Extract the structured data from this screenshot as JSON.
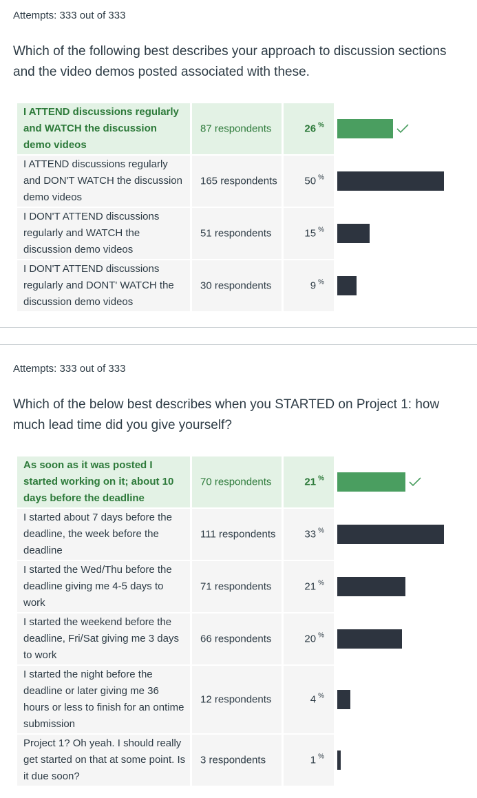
{
  "questions": [
    {
      "attempts": "Attempts: 333 out of 333",
      "text": "Which of the following best describes your approach to discussion sections and the video demos posted associated with these.",
      "answers": [
        {
          "text": "I ATTEND discussions regularly and WATCH the discussion demo videos",
          "respondents": "87 respondents",
          "percent": "26",
          "value": 26,
          "correct": true
        },
        {
          "text": "I ATTEND discussions regularly and DON'T WATCH the discussion demo videos",
          "respondents": "165 respondents",
          "percent": "50",
          "value": 50,
          "correct": false
        },
        {
          "text": "I DON'T ATTEND discussions regularly and WATCH the discussion demo videos",
          "respondents": "51 respondents",
          "percent": "15",
          "value": 15,
          "correct": false
        },
        {
          "text": "I DON'T ATTEND discussions regularly and DONT' WATCH the discussion demo videos",
          "respondents": "30 respondents",
          "percent": "9",
          "value": 9,
          "correct": false
        }
      ]
    },
    {
      "attempts": "Attempts: 333 out of 333",
      "text": "Which of the below best describes when you STARTED on Project 1: how much lead time did you give yourself?",
      "answers": [
        {
          "text": "As soon as it was posted I started working on it; about 10 days before the deadline",
          "respondents": "70 respondents",
          "percent": "21",
          "value": 21,
          "correct": true
        },
        {
          "text": "I started about 7 days before the deadline, the week before the deadline",
          "respondents": "111 respondents",
          "percent": "33",
          "value": 33,
          "correct": false
        },
        {
          "text": "I started the Wed/Thu before the deadline giving me 4-5 days to work",
          "respondents": "71 respondents",
          "percent": "21",
          "value": 21,
          "correct": false
        },
        {
          "text": "I started the weekend before the deadline, Fri/Sat giving me 3 days to work",
          "respondents": "66 respondents",
          "percent": "20",
          "value": 20,
          "correct": false
        },
        {
          "text": "I started the night before the deadline or later giving me 36 hours or less to finish for an ontime submission",
          "respondents": "12 respondents",
          "percent": "4",
          "value": 4,
          "correct": false
        },
        {
          "text": "Project 1? Oh yeah. I should really get started on that at some point. Is it due soon?",
          "respondents": "3 respondents",
          "percent": "1",
          "value": 1,
          "correct": false
        }
      ]
    }
  ],
  "percent_symbol": "%",
  "colors": {
    "correct_bar": "#4a9e60",
    "bar": "#2d343f",
    "correct_bg": "#e3f2e5",
    "row_bg": "#f5f5f5",
    "correct_text": "#2d7a3a"
  },
  "icons": {
    "correct": "check-icon"
  }
}
